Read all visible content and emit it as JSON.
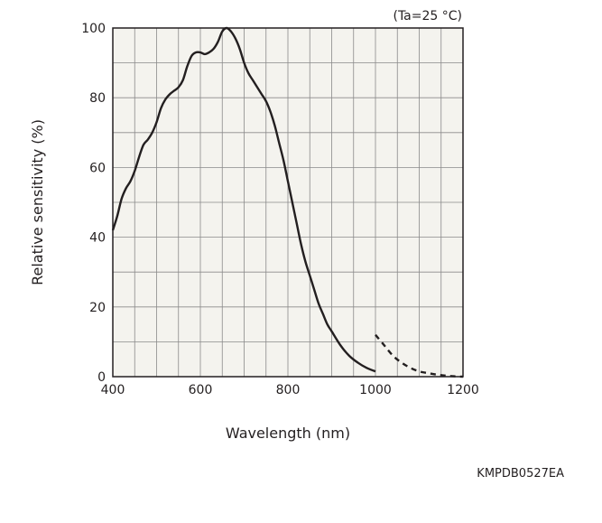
{
  "chart_data": {
    "type": "line",
    "title": "",
    "xlabel": "Wavelength (nm)",
    "ylabel": "Relative sensitivity (%)",
    "condition_note": "(Ta=25 °C)",
    "figure_code": "KMPDB0527EA",
    "xlim": [
      400,
      1200
    ],
    "ylim": [
      0,
      100
    ],
    "x_ticks": [
      400,
      600,
      800,
      1000,
      1200
    ],
    "y_ticks": [
      0,
      20,
      40,
      60,
      80,
      100
    ],
    "grid": true,
    "colors": {
      "plot_background": "#f4f3ee",
      "grid": "#8a8a8a",
      "line": "#231f20"
    },
    "series": [
      {
        "line_style": "solid",
        "x": [
          400,
          410,
          420,
          430,
          440,
          450,
          460,
          470,
          480,
          490,
          500,
          510,
          520,
          530,
          540,
          550,
          560,
          570,
          580,
          590,
          600,
          610,
          620,
          630,
          640,
          650,
          660,
          670,
          680,
          690,
          700,
          710,
          720,
          730,
          740,
          750,
          760,
          770,
          780,
          790,
          800,
          810,
          820,
          830,
          840,
          850,
          860,
          870,
          880,
          890,
          900,
          920,
          940,
          960,
          980,
          1000
        ],
        "y": [
          42,
          46,
          51,
          54,
          56,
          59,
          63,
          66.5,
          68,
          70,
          73,
          77,
          79.5,
          81,
          82,
          83,
          85,
          89,
          92,
          93,
          93,
          92.5,
          93,
          94,
          96,
          99,
          100,
          99,
          97,
          94,
          90,
          87,
          85,
          83,
          81,
          79,
          76,
          72,
          67,
          62,
          56,
          50,
          44,
          38,
          33,
          29,
          25,
          21,
          18,
          15,
          13,
          9,
          6,
          4,
          2.5,
          1.5
        ]
      },
      {
        "line_style": "dashed",
        "x": [
          1000,
          1020,
          1040,
          1060,
          1080,
          1100,
          1120,
          1140,
          1160,
          1180,
          1200
        ],
        "y": [
          12,
          9,
          6,
          4,
          2.5,
          1.5,
          1,
          0.6,
          0.3,
          0.1,
          0
        ]
      }
    ]
  }
}
